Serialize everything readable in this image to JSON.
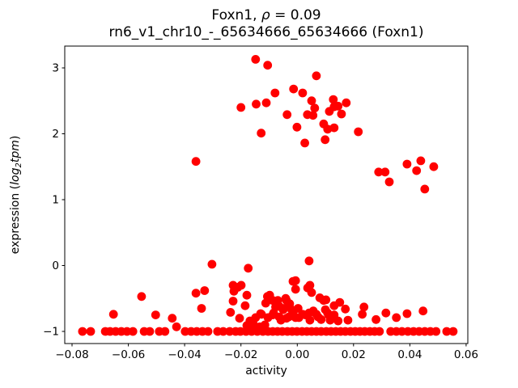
{
  "figure": {
    "title": {
      "prefix": "Foxn1, ",
      "rho": "ρ",
      "suffix": " = 0.09"
    },
    "subtitle": "rn6_v1_chr10_-_65634666_65634666 (Foxn1)",
    "xlabel": "activity",
    "ylabel": {
      "prefix": "expression (",
      "log": "log",
      "sub": "2",
      "var": "tpm",
      "suffix": ")"
    }
  },
  "chart_data": {
    "type": "scatter",
    "title": "Foxn1, ρ = 0.09",
    "subtitle": "rn6_v1_chr10_-_65634666_65634666 (Foxn1)",
    "xlabel": "activity",
    "ylabel": "expression (log2 tpm)",
    "marker_color": "#ff0000",
    "marker_radius_px": 5.4,
    "grid": false,
    "legend": null,
    "xlim": [
      -0.0826,
      0.0606
    ],
    "ylim": [
      -1.184,
      3.331
    ],
    "xticks": [
      -0.08,
      -0.06,
      -0.04,
      -0.02,
      0.0,
      0.02,
      0.04,
      0.06
    ],
    "xtick_labels": [
      "−0.08",
      "−0.06",
      "−0.04",
      "−0.02",
      "0.00",
      "0.02",
      "0.04",
      "0.06"
    ],
    "yticks": [
      -1,
      0,
      1,
      2,
      3
    ],
    "ytick_labels": [
      "−1",
      "0",
      "1",
      "2",
      "3"
    ],
    "points": [
      [
        -0.0148,
        3.13
      ],
      [
        -0.0105,
        3.04
      ],
      [
        0.0068,
        2.88
      ],
      [
        -0.02,
        2.4
      ],
      [
        -0.0146,
        2.45
      ],
      [
        -0.011,
        2.47
      ],
      [
        -0.0013,
        2.68
      ],
      [
        0.0019,
        2.62
      ],
      [
        -0.0079,
        2.62
      ],
      [
        0.0051,
        2.5
      ],
      [
        0.0128,
        2.52
      ],
      [
        0.0131,
        2.41
      ],
      [
        0.0062,
        2.39
      ],
      [
        0.0145,
        2.42
      ],
      [
        0.0174,
        2.47
      ],
      [
        -0.0036,
        2.29
      ],
      [
        0.0036,
        2.29
      ],
      [
        0.0056,
        2.28
      ],
      [
        0.0114,
        2.34
      ],
      [
        0.0157,
        2.3
      ],
      [
        0.0094,
        2.15
      ],
      [
        -0.0001,
        2.1
      ],
      [
        0.0108,
        2.07
      ],
      [
        0.0131,
        2.09
      ],
      [
        0.0217,
        2.03
      ],
      [
        0.0099,
        1.91
      ],
      [
        0.0027,
        1.86
      ],
      [
        -0.0128,
        2.01
      ],
      [
        -0.036,
        1.58
      ],
      [
        0.0289,
        1.42
      ],
      [
        0.0312,
        1.42
      ],
      [
        0.0327,
        1.27
      ],
      [
        0.039,
        1.54
      ],
      [
        0.0424,
        1.44
      ],
      [
        0.0439,
        1.59
      ],
      [
        0.0485,
        1.5
      ],
      [
        0.0453,
        1.16
      ],
      [
        -0.0303,
        0.02
      ],
      [
        0.0042,
        0.07
      ],
      [
        -0.0174,
        -0.04
      ],
      [
        -0.0006,
        -0.23
      ],
      [
        -0.0553,
        -0.47
      ],
      [
        -0.0653,
        -0.74
      ],
      [
        -0.0503,
        -0.75
      ],
      [
        -0.036,
        -0.42
      ],
      [
        -0.0329,
        -0.38
      ],
      [
        -0.034,
        -0.65
      ],
      [
        -0.0444,
        -0.8
      ],
      [
        -0.0228,
        -0.3
      ],
      [
        -0.0199,
        -0.3
      ],
      [
        -0.0211,
        -0.33
      ],
      [
        -0.0225,
        -0.39
      ],
      [
        -0.0179,
        -0.45
      ],
      [
        -0.0228,
        -0.54
      ],
      [
        -0.0185,
        -0.61
      ],
      [
        -0.0237,
        -0.71
      ],
      [
        -0.0205,
        -0.8
      ],
      [
        -0.0168,
        -0.84
      ],
      [
        -0.0148,
        -0.79
      ],
      [
        -0.0127,
        -0.74
      ],
      [
        -0.0104,
        -0.79
      ],
      [
        -0.0098,
        -0.45
      ],
      [
        -0.0087,
        -0.53
      ],
      [
        -0.0038,
        -0.53
      ],
      [
        -0.0027,
        -0.58
      ],
      [
        -0.0064,
        -0.62
      ],
      [
        -0.005,
        -0.67
      ],
      [
        -0.0084,
        -0.72
      ],
      [
        -0.0015,
        -0.72
      ],
      [
        -0.0015,
        -0.24
      ],
      [
        -0.0006,
        -0.36
      ],
      [
        0.0037,
        -0.34
      ],
      [
        0.0019,
        -0.74
      ],
      [
        0.0042,
        -0.72
      ],
      [
        0.0068,
        -0.74
      ],
      [
        0.0094,
        -0.53
      ],
      [
        0.0131,
        -0.61
      ],
      [
        0.0108,
        -0.72
      ],
      [
        0.0131,
        -0.75
      ],
      [
        0.0045,
        -0.83
      ],
      [
        0.0085,
        -0.82
      ],
      [
        -0.0058,
        -0.83
      ],
      [
        -0.0038,
        -0.8
      ],
      [
        -0.0006,
        -0.79
      ],
      [
        0.0151,
        -0.56
      ],
      [
        0.0102,
        -0.52
      ],
      [
        0.0171,
        -0.66
      ],
      [
        0.0237,
        -0.63
      ],
      [
        0.0231,
        -0.74
      ],
      [
        0.028,
        -0.82
      ],
      [
        0.0315,
        -0.72
      ],
      [
        0.0352,
        -0.79
      ],
      [
        0.039,
        -0.73
      ],
      [
        0.0447,
        -0.69
      ],
      [
        0.0117,
        -0.83
      ],
      [
        0.0145,
        -0.84
      ],
      [
        0.018,
        -0.83
      ],
      [
        -0.0106,
        -0.47
      ],
      [
        -0.0112,
        -0.57
      ],
      [
        -0.0069,
        -0.53
      ],
      [
        -0.0041,
        -0.5
      ],
      [
        0.0003,
        -0.65
      ],
      [
        0.0029,
        -0.75
      ],
      [
        0.0057,
        -0.69
      ],
      [
        0.0074,
        -0.78
      ],
      [
        0.008,
        -0.49
      ],
      [
        0.0051,
        -0.41
      ],
      [
        0.0045,
        -0.3
      ],
      [
        -0.0077,
        -0.63
      ],
      [
        -0.0048,
        -0.65
      ],
      [
        -0.002,
        -0.67
      ],
      [
        -0.013,
        -0.73
      ],
      [
        -0.0087,
        -0.75
      ],
      [
        -0.0064,
        -0.78
      ],
      [
        -0.003,
        -0.78
      ],
      [
        0.0006,
        -0.79
      ],
      [
        0.01,
        -0.67
      ],
      [
        0.0111,
        -0.75
      ],
      [
        -0.0429,
        -0.93
      ],
      [
        -0.0179,
        -0.91
      ],
      [
        -0.0156,
        -0.89
      ],
      [
        -0.0133,
        -0.93
      ],
      [
        -0.0115,
        -0.9
      ],
      [
        -0.0763,
        -1.0
      ],
      [
        -0.0734,
        -1.0
      ],
      [
        -0.0682,
        -1.0
      ],
      [
        -0.0665,
        -1.0
      ],
      [
        -0.0645,
        -1.0
      ],
      [
        -0.0625,
        -1.0
      ],
      [
        -0.0605,
        -1.0
      ],
      [
        -0.0584,
        -1.0
      ],
      [
        -0.0544,
        -1.0
      ],
      [
        -0.0524,
        -1.0
      ],
      [
        -0.049,
        -1.0
      ],
      [
        -0.047,
        -1.0
      ],
      [
        -0.0398,
        -1.0
      ],
      [
        -0.0377,
        -1.0
      ],
      [
        -0.0357,
        -1.0
      ],
      [
        -0.0337,
        -1.0
      ],
      [
        -0.0317,
        -1.0
      ],
      [
        -0.0283,
        -1.0
      ],
      [
        -0.0263,
        -1.0
      ],
      [
        -0.024,
        -1.0
      ],
      [
        -0.0219,
        -1.0
      ],
      [
        -0.0202,
        -1.0
      ],
      [
        -0.0182,
        -1.0
      ],
      [
        -0.0162,
        -1.0
      ],
      [
        -0.0142,
        -1.0
      ],
      [
        -0.0122,
        -1.0
      ],
      [
        -0.0104,
        -1.0
      ],
      [
        -0.0087,
        -1.0
      ],
      [
        -0.007,
        -1.0
      ],
      [
        -0.0053,
        -1.0
      ],
      [
        -0.0035,
        -1.0
      ],
      [
        -0.0018,
        -1.0
      ],
      [
        -0.0001,
        -1.0
      ],
      [
        0.0017,
        -1.0
      ],
      [
        0.0034,
        -1.0
      ],
      [
        0.0051,
        -1.0
      ],
      [
        0.0068,
        -1.0
      ],
      [
        0.0085,
        -1.0
      ],
      [
        0.0103,
        -1.0
      ],
      [
        0.012,
        -1.0
      ],
      [
        0.0137,
        -1.0
      ],
      [
        0.0154,
        -1.0
      ],
      [
        0.0171,
        -1.0
      ],
      [
        0.0189,
        -1.0
      ],
      [
        0.0206,
        -1.0
      ],
      [
        0.0223,
        -1.0
      ],
      [
        0.024,
        -1.0
      ],
      [
        0.0258,
        -1.0
      ],
      [
        0.0275,
        -1.0
      ],
      [
        0.0292,
        -1.0
      ],
      [
        0.0332,
        -1.0
      ],
      [
        0.0352,
        -1.0
      ],
      [
        0.0372,
        -1.0
      ],
      [
        0.0393,
        -1.0
      ],
      [
        0.0413,
        -1.0
      ],
      [
        0.0433,
        -1.0
      ],
      [
        0.0453,
        -1.0
      ],
      [
        0.0473,
        -1.0
      ],
      [
        0.0493,
        -1.0
      ],
      [
        0.0531,
        -1.0
      ],
      [
        0.0554,
        -1.0
      ]
    ]
  }
}
